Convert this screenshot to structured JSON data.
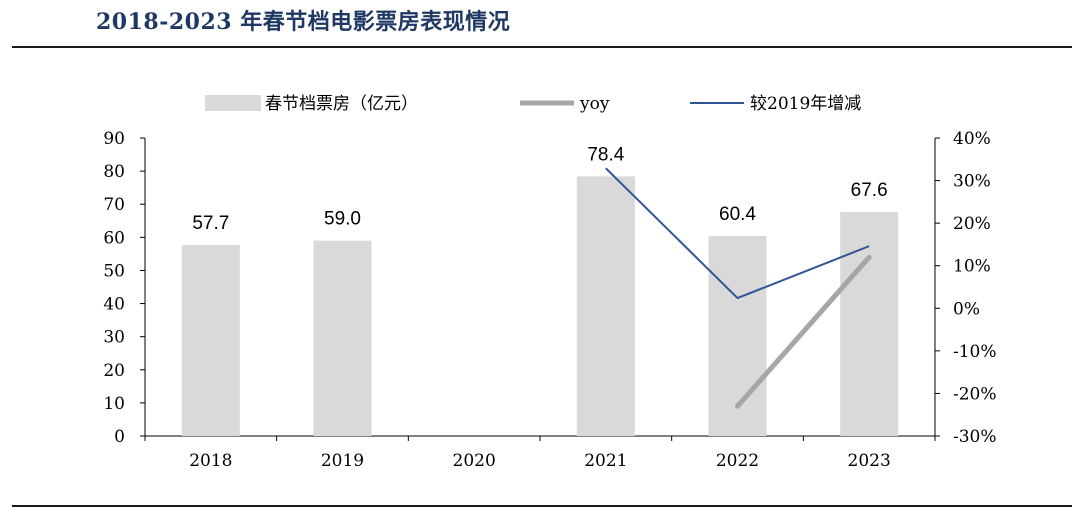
{
  "header": {
    "title": "2018-2023 年春节档电影票房表现情况"
  },
  "chart_data": {
    "type": "bar",
    "categories": [
      "2018",
      "2019",
      "2020",
      "2021",
      "2022",
      "2023"
    ],
    "series": [
      {
        "name": "春节档票房（亿元）",
        "type": "bar",
        "axis": "left",
        "color": "#d9d9d9",
        "values": [
          57.7,
          59.0,
          null,
          78.4,
          60.4,
          67.6
        ],
        "labels": [
          "57.7",
          "59.0",
          "",
          "78.4",
          "60.4",
          "67.6"
        ]
      },
      {
        "name": "yoy",
        "type": "line",
        "axis": "right",
        "color": "#a6a6a6",
        "values": [
          null,
          null,
          null,
          null,
          -23,
          12
        ]
      },
      {
        "name": "较2019年增减",
        "type": "line",
        "axis": "right",
        "color": "#2f5597",
        "values": [
          null,
          null,
          null,
          32.9,
          2.4,
          14.6
        ]
      }
    ],
    "left_axis": {
      "ylim": [
        0,
        90
      ],
      "ticks": [
        "0",
        "10",
        "20",
        "30",
        "40",
        "50",
        "60",
        "70",
        "80",
        "90"
      ]
    },
    "right_axis": {
      "ylim": [
        -30,
        40
      ],
      "ticks": [
        "-30%",
        "-20%",
        "-10%",
        "0%",
        "10%",
        "20%",
        "30%",
        "40%"
      ]
    },
    "legend_placement": "top-center",
    "grid": false
  }
}
